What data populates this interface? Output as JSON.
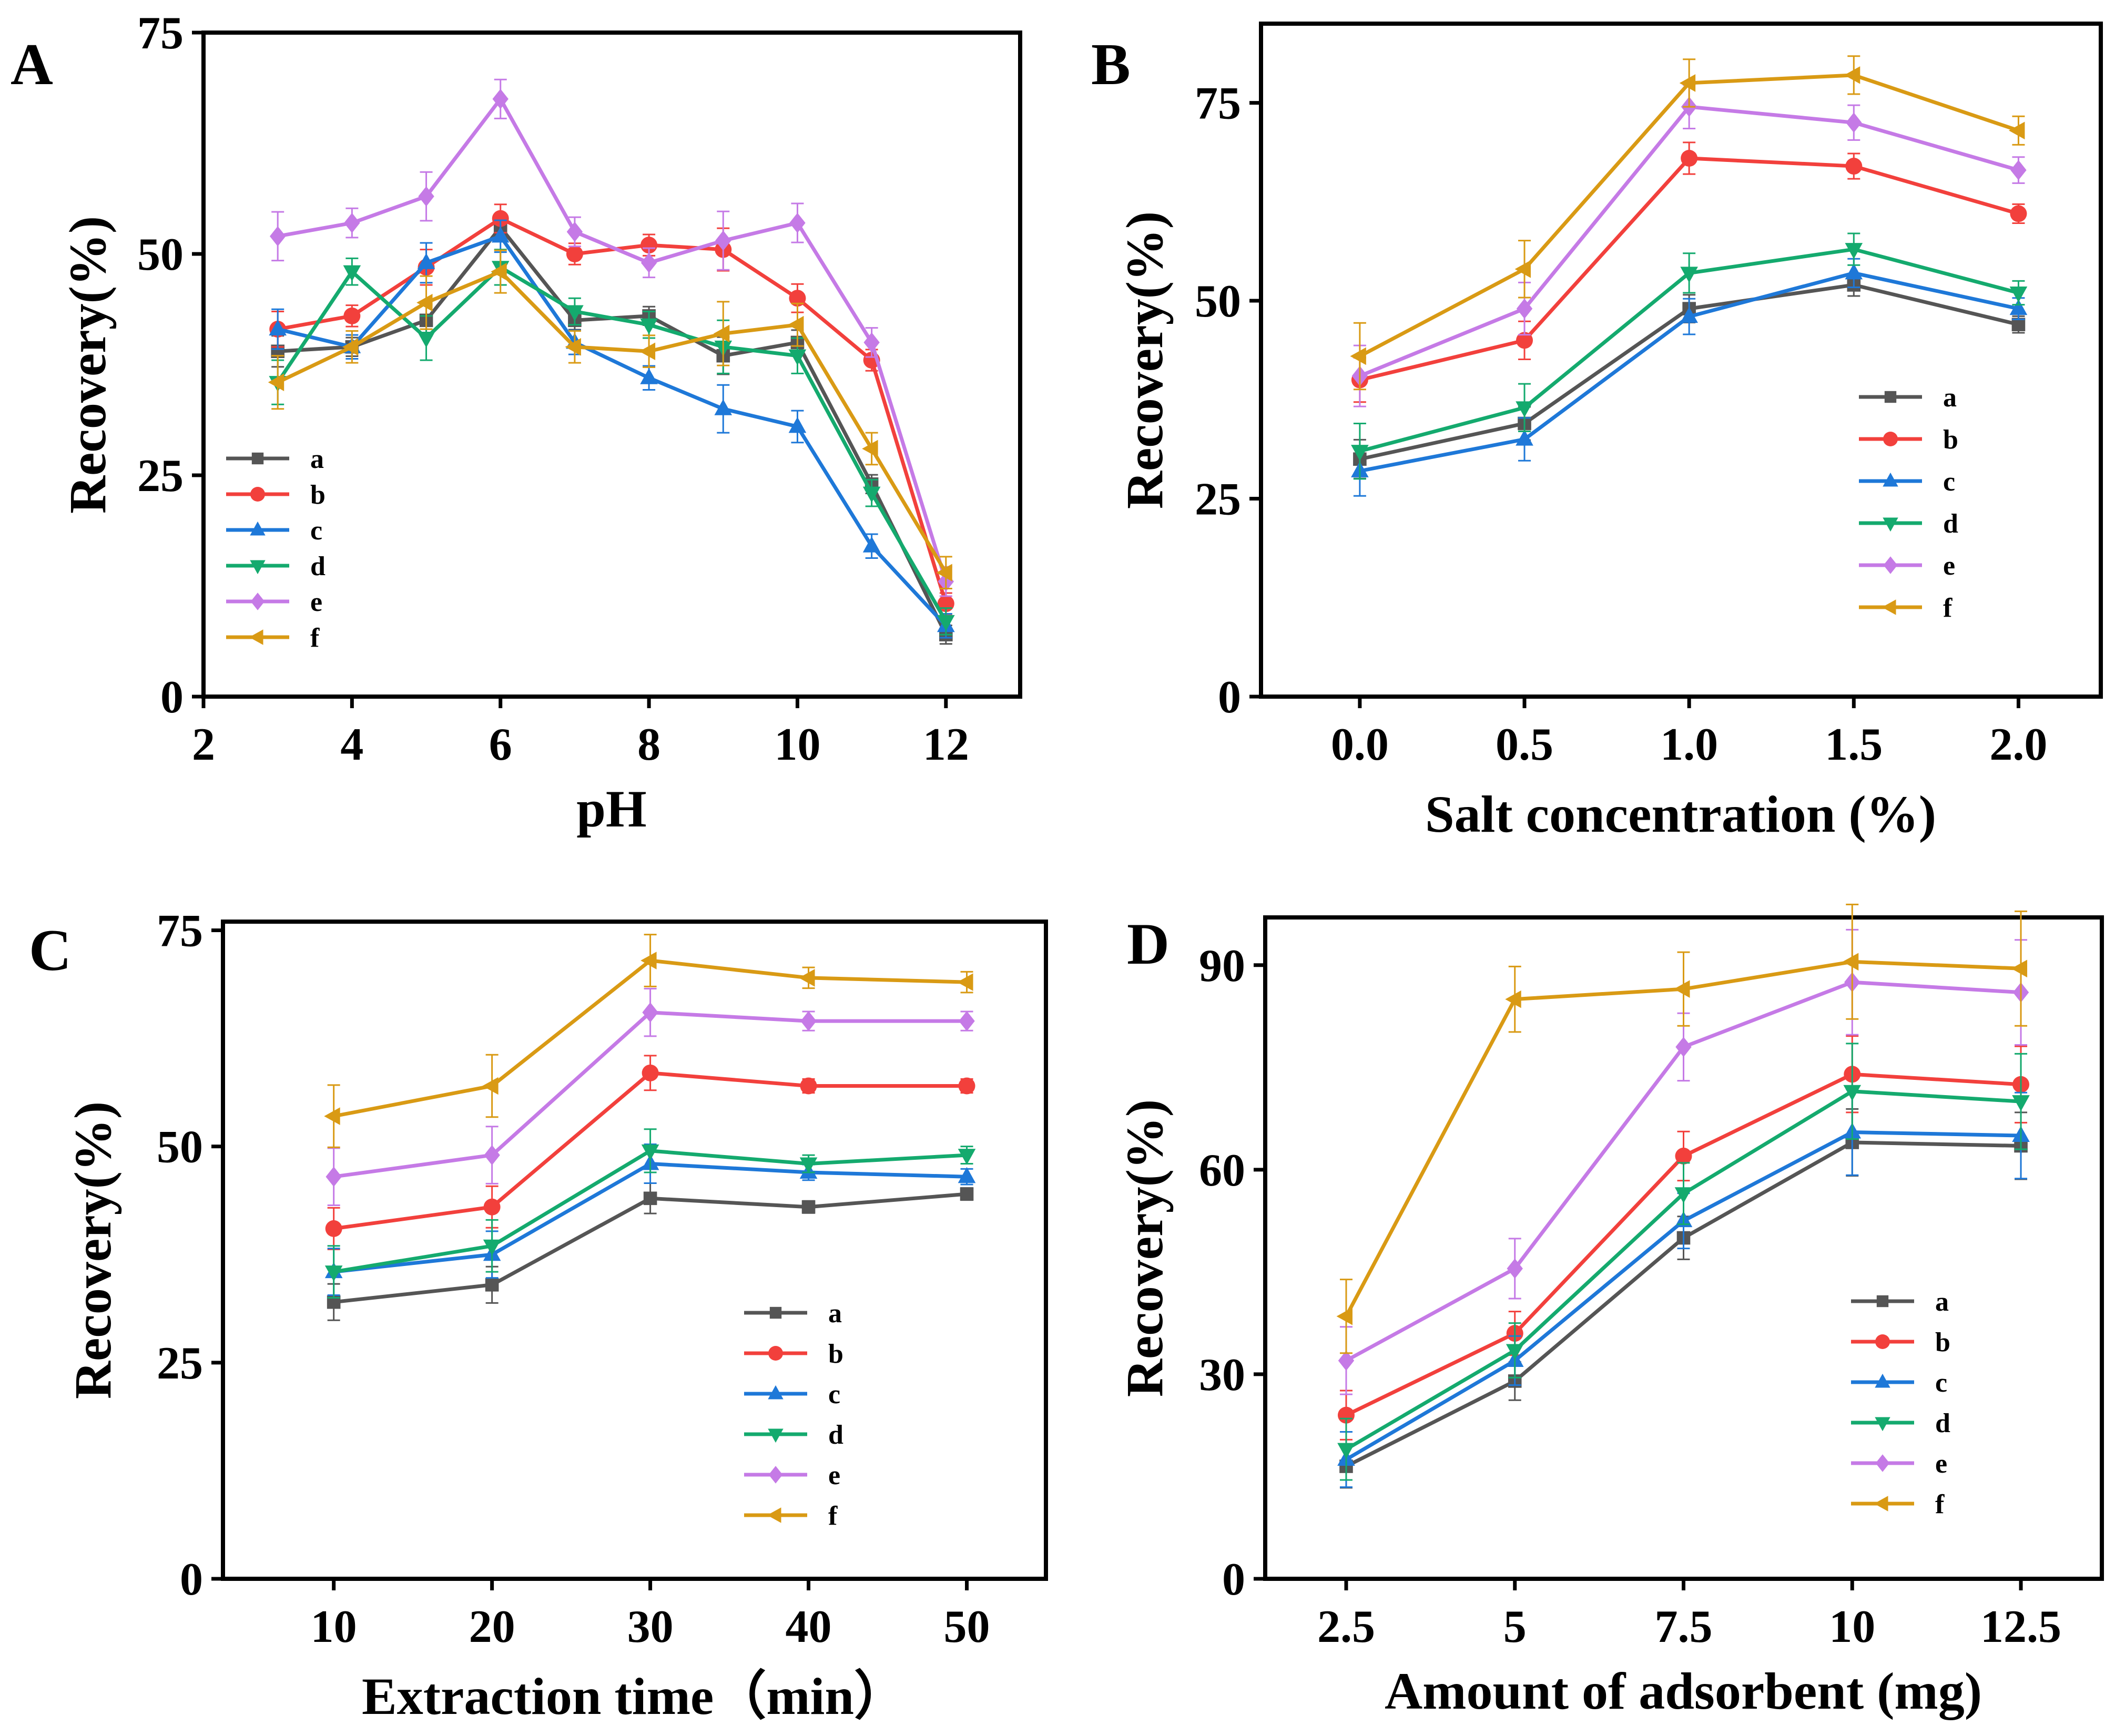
{
  "colors": {
    "a": "#555555",
    "b": "#f2403c",
    "c": "#1e78d8",
    "d": "#14aa6e",
    "e": "#c57ae6",
    "f": "#d99a14"
  },
  "chart_data": [
    {
      "type": "line",
      "panel": "A",
      "xlabel": "pH",
      "ylabel": "Recovery(%)",
      "xlim": [
        2,
        13
      ],
      "ylim": [
        0,
        75
      ],
      "xticks": [
        2,
        4,
        6,
        8,
        10,
        12
      ],
      "xtick_labels": [
        "2",
        "4",
        "6",
        "8",
        "10",
        "12"
      ],
      "yticks": [
        0,
        25,
        50,
        75
      ],
      "ytick_labels": [
        "0",
        "25",
        "50",
        "75"
      ],
      "legend_position": "center-left",
      "x": [
        3,
        4,
        5,
        6,
        7,
        8,
        9,
        10,
        11,
        12
      ],
      "series": [
        {
          "name": "a",
          "marker": "square",
          "values": [
            39,
            39.5,
            42.5,
            53,
            42.5,
            43,
            38.5,
            40,
            24,
            7
          ]
        },
        {
          "name": "b",
          "marker": "circle",
          "values": [
            41.5,
            43,
            48.5,
            54,
            50,
            51,
            50.5,
            45,
            38,
            10.5
          ]
        },
        {
          "name": "c",
          "marker": "triangle-up",
          "values": [
            41.5,
            39.5,
            49,
            52,
            40,
            36,
            32.5,
            30.5,
            17,
            8
          ]
        },
        {
          "name": "d",
          "marker": "triangle-down",
          "values": [
            35.5,
            48,
            40.5,
            48.5,
            43.5,
            42,
            39.5,
            38.5,
            23,
            8.5
          ]
        },
        {
          "name": "e",
          "marker": "diamond",
          "values": [
            52,
            53.5,
            56.5,
            67.5,
            52.5,
            49,
            51.5,
            53.5,
            40,
            13
          ]
        },
        {
          "name": "f",
          "marker": "triangle-left",
          "values": [
            35.5,
            39.5,
            44.5,
            48,
            39.5,
            39,
            41,
            42,
            28,
            14
          ]
        }
      ],
      "errors": [
        2.5,
        1.5,
        2.5,
        2,
        1.5,
        1.5,
        3,
        2,
        1.5,
        1.5
      ]
    },
    {
      "type": "line",
      "panel": "B",
      "xlabel": "Salt concentration (%)",
      "ylabel": "Recovery(%)",
      "xlim": [
        -0.3,
        2.25
      ],
      "ylim": [
        0,
        85
      ],
      "xticks": [
        0,
        0.5,
        1,
        1.5,
        2
      ],
      "xtick_labels": [
        "0.0",
        "0.5",
        "1.0",
        "1.5",
        "2.0"
      ],
      "yticks": [
        0,
        25,
        50,
        75
      ],
      "ytick_labels": [
        "0",
        "25",
        "50",
        "75"
      ],
      "legend_position": "right",
      "x": [
        0,
        0.5,
        1,
        1.5,
        2
      ],
      "series": [
        {
          "name": "a",
          "marker": "square",
          "values": [
            30,
            34.5,
            49,
            52,
            47
          ]
        },
        {
          "name": "b",
          "marker": "circle",
          "values": [
            40,
            45,
            68,
            67,
            61
          ]
        },
        {
          "name": "c",
          "marker": "triangle-up",
          "values": [
            28.5,
            32.5,
            48,
            53.5,
            49
          ]
        },
        {
          "name": "d",
          "marker": "triangle-down",
          "values": [
            31,
            36.5,
            53.5,
            56.5,
            51
          ]
        },
        {
          "name": "e",
          "marker": "diamond",
          "values": [
            40.5,
            49,
            74.5,
            72.5,
            66.5
          ]
        },
        {
          "name": "f",
          "marker": "triangle-left",
          "values": [
            43,
            54,
            77.5,
            78.5,
            71.5
          ]
        }
      ],
      "errors": [
        3.5,
        3,
        2.5,
        2,
        1.5
      ]
    },
    {
      "type": "line",
      "panel": "C",
      "xlabel": "Extraction time（min）",
      "ylabel": "Recovery(%)",
      "xlim": [
        3,
        55
      ],
      "ylim": [
        0,
        76
      ],
      "xticks": [
        10,
        20,
        30,
        40,
        50
      ],
      "xtick_labels": [
        "10",
        "20",
        "30",
        "40",
        "50"
      ],
      "yticks": [
        0,
        25,
        50,
        75
      ],
      "ytick_labels": [
        "0",
        "25",
        "50",
        "75"
      ],
      "legend_position": "bottom-right",
      "x": [
        10,
        20,
        30,
        40,
        50
      ],
      "series": [
        {
          "name": "a",
          "marker": "square",
          "values": [
            32,
            34,
            44,
            43,
            44.5
          ]
        },
        {
          "name": "b",
          "marker": "circle",
          "values": [
            40.5,
            43,
            58.5,
            57,
            57
          ]
        },
        {
          "name": "c",
          "marker": "triangle-up",
          "values": [
            35.5,
            37.5,
            48,
            47,
            46.5
          ]
        },
        {
          "name": "d",
          "marker": "triangle-down",
          "values": [
            35.5,
            38.5,
            49.5,
            48,
            49
          ]
        },
        {
          "name": "e",
          "marker": "diamond",
          "values": [
            46.5,
            49,
            65.5,
            64.5,
            64.5
          ]
        },
        {
          "name": "f",
          "marker": "triangle-left",
          "values": [
            53.5,
            57,
            71.5,
            69.5,
            69
          ]
        }
      ],
      "errors": [
        3,
        3,
        2.5,
        1,
        1
      ]
    },
    {
      "type": "line",
      "panel": "D",
      "xlabel": "Amount of adsorbent (mg)",
      "ylabel": "Recovery(%)",
      "xlim": [
        1.3,
        13.7
      ],
      "ylim": [
        0,
        97
      ],
      "xticks": [
        2.5,
        5,
        7.5,
        10,
        12.5
      ],
      "xtick_labels": [
        "2.5",
        "5",
        "7.5",
        "10",
        "12.5"
      ],
      "yticks": [
        0,
        30,
        60,
        90
      ],
      "ytick_labels": [
        "0",
        "30",
        "60",
        "90"
      ],
      "legend_position": "bottom-right",
      "x": [
        2.5,
        5,
        7.5,
        10,
        12.5
      ],
      "series": [
        {
          "name": "a",
          "marker": "square",
          "values": [
            16.5,
            29,
            50,
            64,
            63.5
          ]
        },
        {
          "name": "b",
          "marker": "circle",
          "values": [
            24,
            36,
            62,
            74,
            72.5
          ]
        },
        {
          "name": "c",
          "marker": "triangle-up",
          "values": [
            17.5,
            32,
            52.5,
            65.5,
            65
          ]
        },
        {
          "name": "d",
          "marker": "triangle-down",
          "values": [
            19,
            33.5,
            56.5,
            71.5,
            70
          ]
        },
        {
          "name": "e",
          "marker": "diamond",
          "values": [
            32,
            45.5,
            78,
            87.5,
            86
          ]
        },
        {
          "name": "f",
          "marker": "triangle-left",
          "values": [
            38.5,
            85,
            86.5,
            90.5,
            89.5
          ]
        }
      ],
      "errors": [
        4.5,
        4,
        4.5,
        7,
        7
      ]
    }
  ]
}
